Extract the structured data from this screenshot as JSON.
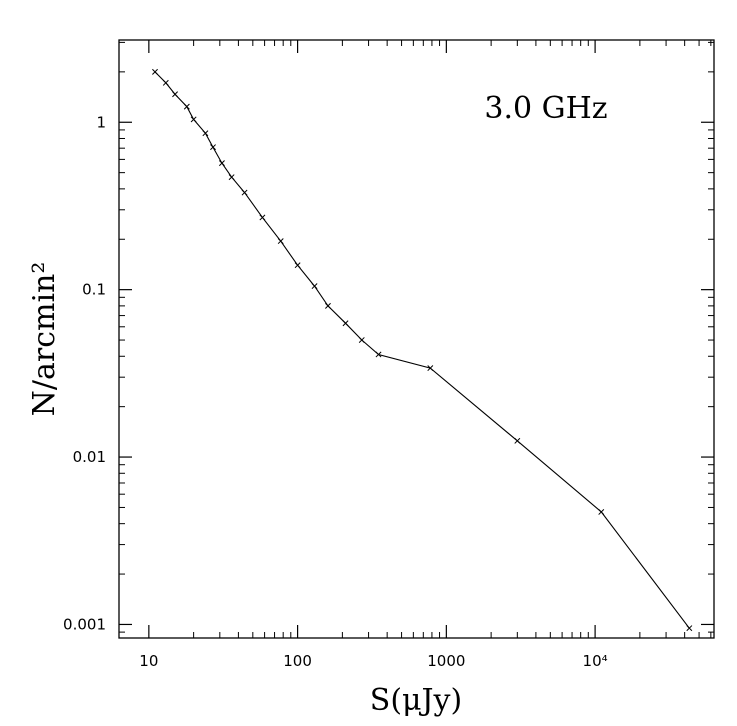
{
  "chart_data": {
    "type": "line",
    "annotation": "3.0  GHz",
    "xlabel": "S(μJy)",
    "ylabel": "N/arcmin²",
    "xscale": "log",
    "yscale": "log",
    "xlim": [
      6.3,
      63000
    ],
    "ylim": [
      0.00083,
      3.1
    ],
    "x_ticks": [
      {
        "value": 10,
        "label": "10"
      },
      {
        "value": 100,
        "label": "100"
      },
      {
        "value": 1000,
        "label": "1000"
      },
      {
        "value": 10000,
        "label": "10⁴"
      }
    ],
    "y_ticks": [
      {
        "value": 0.001,
        "label": "0.001"
      },
      {
        "value": 0.01,
        "label": "0.01"
      },
      {
        "value": 0.1,
        "label": "0.1"
      },
      {
        "value": 1,
        "label": "1"
      }
    ],
    "grid": false,
    "marker": "cross",
    "series": [
      {
        "x": [
          11,
          13,
          15,
          18,
          20,
          24,
          27,
          31,
          36,
          44,
          58,
          77,
          100,
          130,
          160,
          210,
          270,
          350,
          780,
          3000,
          11000,
          43000
        ],
        "y": [
          2.0,
          1.72,
          1.47,
          1.24,
          1.04,
          0.86,
          0.71,
          0.57,
          0.47,
          0.38,
          0.27,
          0.195,
          0.14,
          0.105,
          0.08,
          0.063,
          0.05,
          0.041,
          0.034,
          0.0125,
          0.0047,
          0.00095
        ]
      }
    ]
  }
}
